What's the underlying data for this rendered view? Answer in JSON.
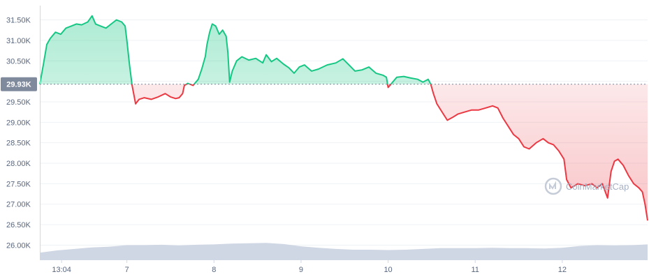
{
  "chart_data": {
    "type": "line",
    "reference_price": 29930,
    "reference_label": "29.93K",
    "y_ticks": [
      {
        "value": 26000,
        "label": "26.00K"
      },
      {
        "value": 26500,
        "label": "26.50K"
      },
      {
        "value": 27000,
        "label": "27.00K"
      },
      {
        "value": 27500,
        "label": "27.50K"
      },
      {
        "value": 28000,
        "label": "28.00K"
      },
      {
        "value": 28500,
        "label": "28.50K"
      },
      {
        "value": 29000,
        "label": "29.00K"
      },
      {
        "value": 29500,
        "label": "29.50K"
      },
      {
        "value": 30000,
        "label": "30.00K"
      },
      {
        "value": 30500,
        "label": "30.50K"
      },
      {
        "value": 31000,
        "label": "31.00K"
      },
      {
        "value": 31500,
        "label": "31.50K"
      }
    ],
    "x_ticks": [
      {
        "t": 0.25,
        "label": "13:04"
      },
      {
        "t": 1.0,
        "label": "7"
      },
      {
        "t": 2.0,
        "label": "8"
      },
      {
        "t": 3.0,
        "label": "9"
      },
      {
        "t": 4.0,
        "label": "10"
      },
      {
        "t": 5.0,
        "label": "11"
      },
      {
        "t": 6.0,
        "label": "12"
      }
    ],
    "x_domain": [
      0.0,
      6.98
    ],
    "ylim": [
      25650,
      31850
    ],
    "volume_domain": [
      0,
      100
    ],
    "colors": {
      "up": "#16c784",
      "down": "#ea3943",
      "volume": "#cfd6e4",
      "grid": "#eff2f5",
      "axis_text": "#58667e",
      "badge": "#808a9d"
    },
    "price_series": [
      [
        0.0,
        29930
      ],
      [
        0.04,
        30400
      ],
      [
        0.08,
        30900
      ],
      [
        0.12,
        31050
      ],
      [
        0.18,
        31200
      ],
      [
        0.24,
        31150
      ],
      [
        0.3,
        31300
      ],
      [
        0.36,
        31350
      ],
      [
        0.42,
        31400
      ],
      [
        0.48,
        31380
      ],
      [
        0.55,
        31450
      ],
      [
        0.6,
        31600
      ],
      [
        0.64,
        31400
      ],
      [
        0.7,
        31350
      ],
      [
        0.76,
        31300
      ],
      [
        0.82,
        31400
      ],
      [
        0.88,
        31500
      ],
      [
        0.94,
        31450
      ],
      [
        0.98,
        31350
      ],
      [
        1.0,
        31000
      ],
      [
        1.03,
        30400
      ],
      [
        1.06,
        29900
      ],
      [
        1.1,
        29450
      ],
      [
        1.14,
        29560
      ],
      [
        1.2,
        29600
      ],
      [
        1.28,
        29560
      ],
      [
        1.36,
        29620
      ],
      [
        1.44,
        29700
      ],
      [
        1.5,
        29620
      ],
      [
        1.56,
        29580
      ],
      [
        1.6,
        29600
      ],
      [
        1.64,
        29700
      ],
      [
        1.66,
        29900
      ],
      [
        1.7,
        29950
      ],
      [
        1.76,
        29900
      ],
      [
        1.82,
        30050
      ],
      [
        1.86,
        30300
      ],
      [
        1.9,
        30600
      ],
      [
        1.92,
        30900
      ],
      [
        1.95,
        31200
      ],
      [
        1.98,
        31400
      ],
      [
        2.02,
        31350
      ],
      [
        2.06,
        31150
      ],
      [
        2.1,
        31250
      ],
      [
        2.14,
        31100
      ],
      [
        2.16,
        30700
      ],
      [
        2.18,
        29980
      ],
      [
        2.21,
        30250
      ],
      [
        2.26,
        30500
      ],
      [
        2.32,
        30600
      ],
      [
        2.4,
        30520
      ],
      [
        2.48,
        30560
      ],
      [
        2.56,
        30450
      ],
      [
        2.6,
        30650
      ],
      [
        2.66,
        30480
      ],
      [
        2.72,
        30560
      ],
      [
        2.8,
        30420
      ],
      [
        2.86,
        30330
      ],
      [
        2.92,
        30200
      ],
      [
        2.98,
        30350
      ],
      [
        3.04,
        30400
      ],
      [
        3.12,
        30250
      ],
      [
        3.2,
        30300
      ],
      [
        3.3,
        30400
      ],
      [
        3.4,
        30450
      ],
      [
        3.48,
        30550
      ],
      [
        3.55,
        30400
      ],
      [
        3.62,
        30250
      ],
      [
        3.7,
        30280
      ],
      [
        3.78,
        30350
      ],
      [
        3.86,
        30200
      ],
      [
        3.94,
        30150
      ],
      [
        3.98,
        30100
      ],
      [
        4.0,
        29850
      ],
      [
        4.04,
        29950
      ],
      [
        4.1,
        30100
      ],
      [
        4.18,
        30120
      ],
      [
        4.26,
        30080
      ],
      [
        4.34,
        30050
      ],
      [
        4.4,
        29980
      ],
      [
        4.46,
        30050
      ],
      [
        4.49,
        29930
      ],
      [
        4.52,
        29700
      ],
      [
        4.56,
        29450
      ],
      [
        4.62,
        29250
      ],
      [
        4.68,
        29050
      ],
      [
        4.74,
        29120
      ],
      [
        4.8,
        29200
      ],
      [
        4.88,
        29250
      ],
      [
        4.96,
        29300
      ],
      [
        5.04,
        29300
      ],
      [
        5.12,
        29350
      ],
      [
        5.2,
        29400
      ],
      [
        5.26,
        29350
      ],
      [
        5.32,
        29100
      ],
      [
        5.38,
        28900
      ],
      [
        5.44,
        28700
      ],
      [
        5.5,
        28600
      ],
      [
        5.56,
        28400
      ],
      [
        5.62,
        28350
      ],
      [
        5.7,
        28500
      ],
      [
        5.78,
        28600
      ],
      [
        5.84,
        28500
      ],
      [
        5.9,
        28450
      ],
      [
        5.96,
        28300
      ],
      [
        6.02,
        28100
      ],
      [
        6.05,
        27600
      ],
      [
        6.1,
        27400
      ],
      [
        6.18,
        27500
      ],
      [
        6.26,
        27450
      ],
      [
        6.34,
        27500
      ],
      [
        6.4,
        27400
      ],
      [
        6.46,
        27500
      ],
      [
        6.52,
        27150
      ],
      [
        6.56,
        27800
      ],
      [
        6.6,
        28050
      ],
      [
        6.64,
        28100
      ],
      [
        6.7,
        27950
      ],
      [
        6.76,
        27700
      ],
      [
        6.82,
        27500
      ],
      [
        6.88,
        27400
      ],
      [
        6.92,
        27300
      ],
      [
        6.95,
        27000
      ],
      [
        6.98,
        26600
      ]
    ],
    "volume_series": [
      [
        0.0,
        18
      ],
      [
        0.2,
        24
      ],
      [
        0.4,
        28
      ],
      [
        0.6,
        32
      ],
      [
        0.8,
        34
      ],
      [
        1.0,
        38
      ],
      [
        1.2,
        38
      ],
      [
        1.4,
        39
      ],
      [
        1.6,
        37
      ],
      [
        1.8,
        39
      ],
      [
        2.0,
        40
      ],
      [
        2.2,
        42
      ],
      [
        2.4,
        43
      ],
      [
        2.6,
        44
      ],
      [
        2.8,
        41
      ],
      [
        3.0,
        35
      ],
      [
        3.2,
        31
      ],
      [
        3.4,
        28
      ],
      [
        3.6,
        26
      ],
      [
        3.8,
        26
      ],
      [
        4.0,
        25
      ],
      [
        4.2,
        26
      ],
      [
        4.4,
        28
      ],
      [
        4.6,
        30
      ],
      [
        4.8,
        30
      ],
      [
        5.0,
        30
      ],
      [
        5.2,
        31
      ],
      [
        5.4,
        30
      ],
      [
        5.6,
        30
      ],
      [
        5.8,
        29
      ],
      [
        6.0,
        31
      ],
      [
        6.2,
        36
      ],
      [
        6.4,
        38
      ],
      [
        6.6,
        37
      ],
      [
        6.8,
        38
      ],
      [
        6.98,
        40
      ]
    ]
  },
  "watermark": {
    "text": "CoinMarketCap",
    "icon": "coinmarketcap-logo-icon"
  }
}
